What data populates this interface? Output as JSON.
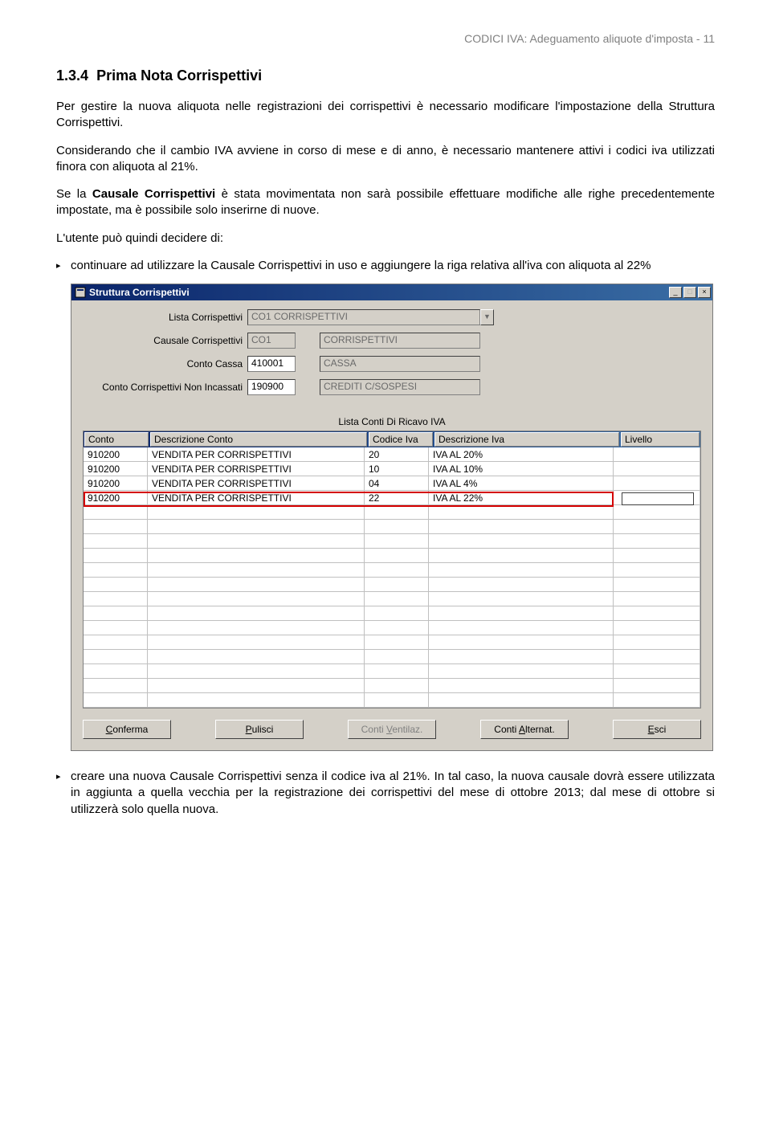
{
  "header": {
    "text": "CODICI IVA: Adeguamento aliquote d'imposta - 11"
  },
  "section": {
    "number": "1.3.4",
    "title": "Prima Nota Corrispettivi"
  },
  "paragraphs": {
    "p1": "Per gestire la nuova aliquota nelle registrazioni dei corrispettivi è necessario modificare l'impostazione della Struttura Corrispettivi.",
    "p2": "Considerando che il cambio IVA avviene in corso di mese e di anno, è necessario mantenere attivi i codici iva utilizzati finora con aliquota al 21%.",
    "p3a": "Se la ",
    "p3b": "Causale Corrispettivi",
    "p3c": " è stata movimentata non sarà possibile effettuare modifiche alle righe precedentemente impostate, ma è possibile solo inserirne di nuove.",
    "p4": "L'utente può quindi decidere di:"
  },
  "bullets": {
    "b1": "continuare ad utilizzare la Causale Corrispettivi in uso e aggiungere la riga relativa all'iva con aliquota al 22%",
    "b2": "creare una nuova Causale Corrispettivi senza il codice iva al 21%. In tal caso, la nuova causale dovrà essere utilizzata in aggiunta a quella vecchia per la registrazione dei corrispettivi del mese di ottobre 2013; dal mese di ottobre si utilizzerà solo quella nuova."
  },
  "window": {
    "title": "Struttura Corrispettivi",
    "form": {
      "lista_label": "Lista Corrispettivi",
      "lista_value": "CO1 CORRISPETTIVI",
      "causale_label": "Causale Corrispettivi",
      "causale_code": "CO1",
      "causale_desc": "CORRISPETTIVI",
      "cassa_label": "Conto Cassa",
      "cassa_code": "410001",
      "cassa_desc": "CASSA",
      "noninc_label": "Conto Corrispettivi Non Incassati",
      "noninc_code": "190900",
      "noninc_desc": "CREDITI C/SOSPESI"
    },
    "table": {
      "caption": "Lista Conti  Di Ricavo IVA",
      "headers": {
        "c1": "Conto",
        "c2": "Descrizione Conto",
        "c3": "Codice Iva",
        "c4": "Descrizione Iva",
        "c5": "Livello"
      },
      "rows": [
        {
          "c1": "910200",
          "c2": "VENDITA PER CORRISPETTIVI",
          "c3": "20",
          "c4": "IVA AL 20%",
          "c5": ""
        },
        {
          "c1": "910200",
          "c2": "VENDITA PER CORRISPETTIVI",
          "c3": "10",
          "c4": "IVA AL 10%",
          "c5": ""
        },
        {
          "c1": "910200",
          "c2": "VENDITA PER CORRISPETTIVI",
          "c3": "04",
          "c4": "IVA AL 4%",
          "c5": ""
        },
        {
          "c1": "910200",
          "c2": "VENDITA PER CORRISPETTIVI",
          "c3": "22",
          "c4": "IVA AL 22%",
          "c5": ""
        }
      ],
      "empty_rows": 14,
      "highlight_row_index": 3,
      "highlight_color": "#d40000"
    },
    "buttons": {
      "conferma": "Conferma",
      "pulisci": "Pulisci",
      "ventilaz": "Conti Ventilaz.",
      "alternat": "Conti Alternat.",
      "esci": "Esci"
    }
  },
  "colors": {
    "page_bg": "#ffffff",
    "header_grey": "#808080",
    "win_bg": "#d4d0c8",
    "titlebar_from": "#0a246a",
    "titlebar_to": "#3a6ea5"
  }
}
